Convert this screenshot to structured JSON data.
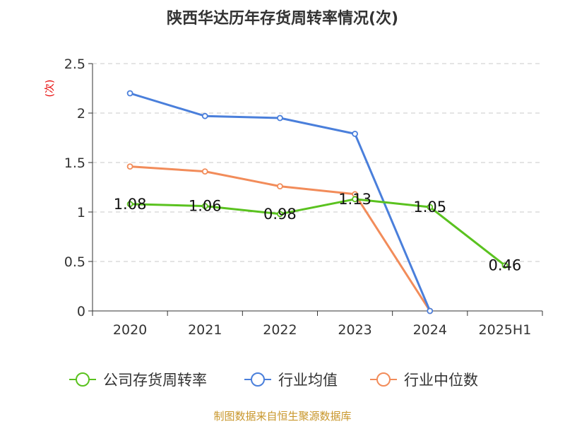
{
  "chart_data": {
    "type": "line",
    "title": "陕西华达历年存货周转率情况(次)",
    "ylabel": "(次)",
    "categories": [
      "2020",
      "2021",
      "2022",
      "2023",
      "2024",
      "2025H1"
    ],
    "ylim": [
      0,
      2.5
    ],
    "yticks": [
      "0",
      "0.5",
      "1",
      "1.5",
      "2",
      "2.5"
    ],
    "grid": true,
    "legend_position": "bottom",
    "series": [
      {
        "name": "公司存货周转率",
        "color": "#5ac21f",
        "values": [
          1.08,
          1.06,
          0.98,
          1.13,
          1.05,
          0.46
        ],
        "labels": [
          "1.08",
          "1.06",
          "0.98",
          "1.13",
          "1.05",
          "0.46"
        ]
      },
      {
        "name": "行业均值",
        "color": "#4a7fdb",
        "values": [
          2.2,
          1.97,
          1.95,
          1.79,
          0,
          null
        ]
      },
      {
        "name": "行业中位数",
        "color": "#f28c5a",
        "values": [
          1.46,
          1.41,
          1.26,
          1.18,
          0,
          null
        ]
      }
    ]
  },
  "source_text": "制图数据来自恒生聚源数据库"
}
